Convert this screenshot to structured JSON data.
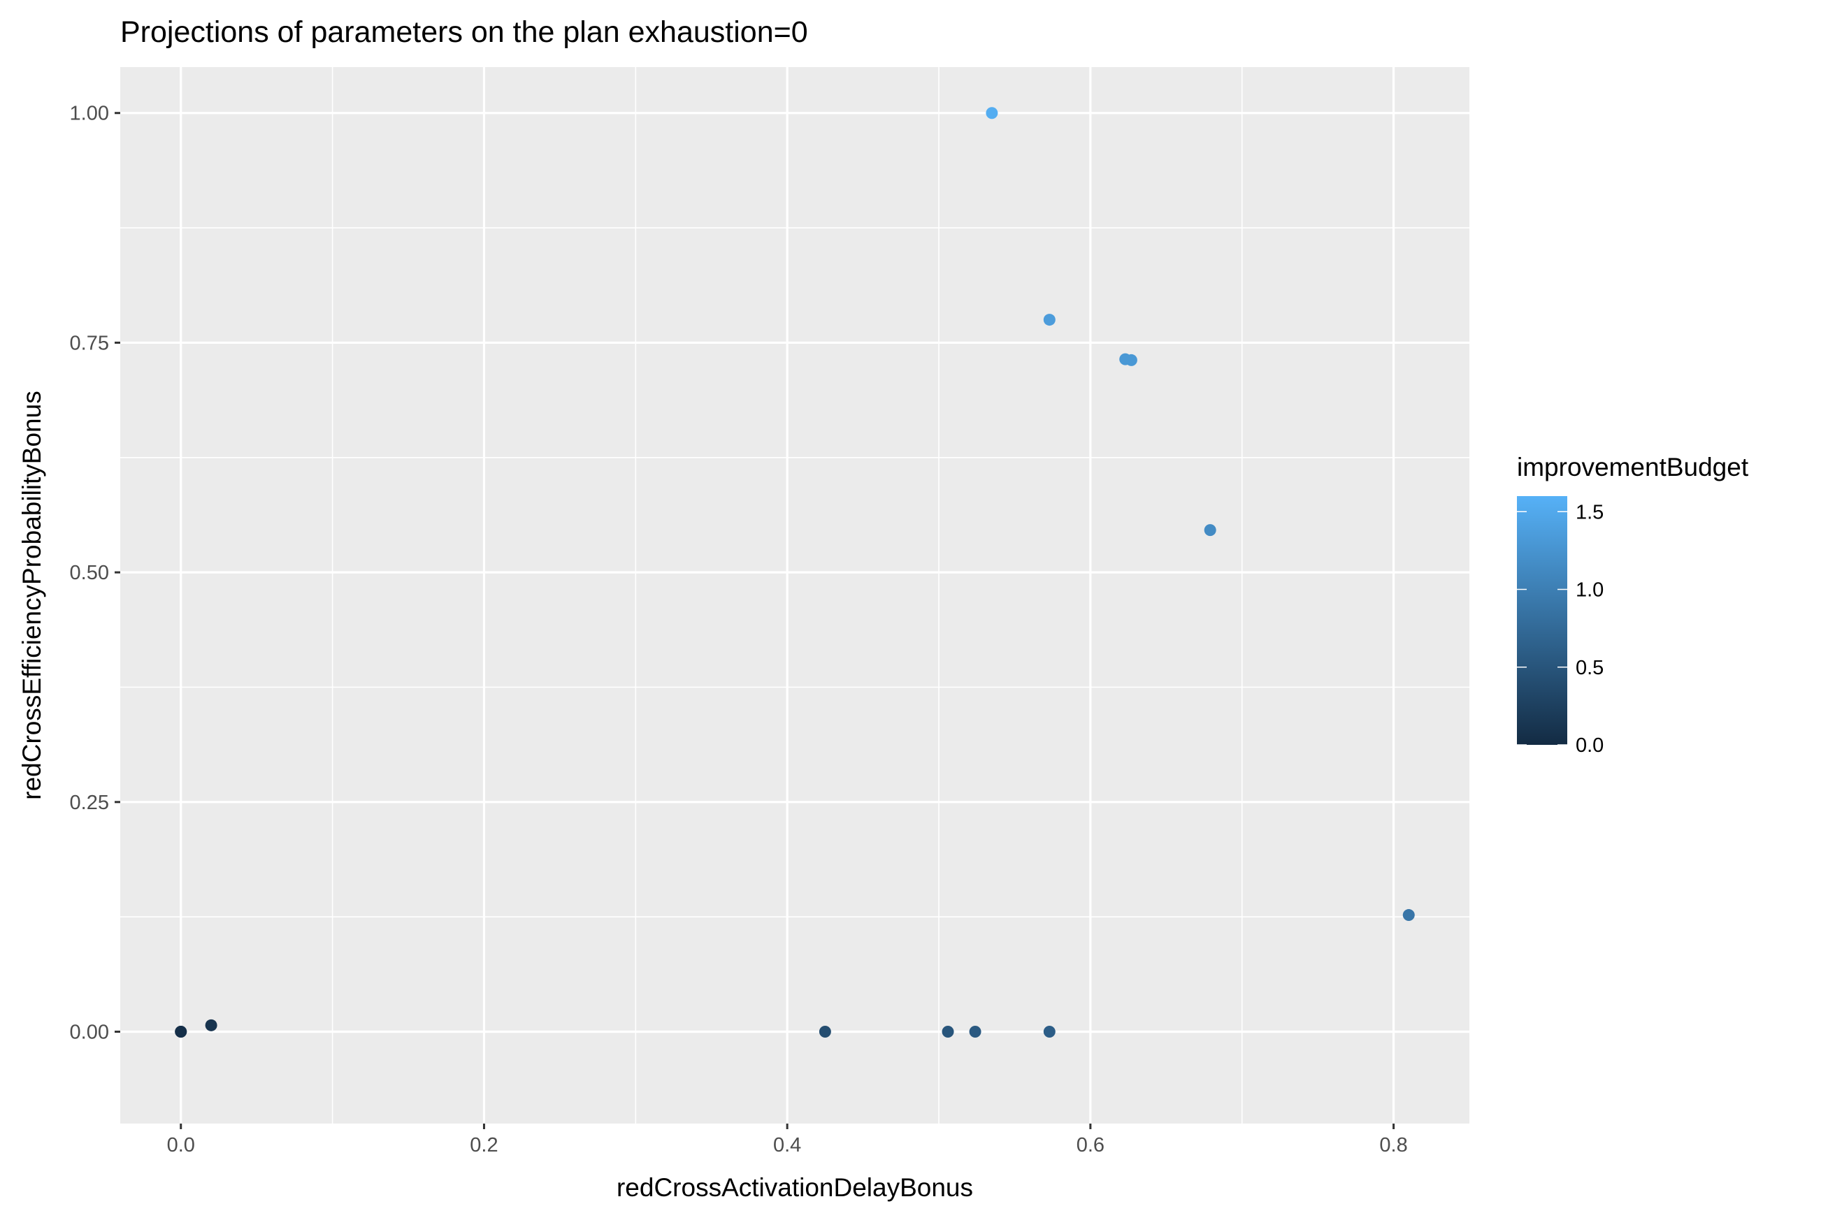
{
  "chart_data": {
    "type": "scatter",
    "title": "Projections of parameters on the plan exhaustion=0",
    "xlabel": "redCrossActivationDelayBonus",
    "ylabel": "redCrossEfficiencyProbabilityBonus",
    "xlim": [
      -0.04,
      0.85
    ],
    "ylim": [
      -0.1,
      1.05
    ],
    "x_ticks": [
      0.0,
      0.2,
      0.4,
      0.6,
      0.8
    ],
    "x_tick_labels": [
      "0.0",
      "0.2",
      "0.4",
      "0.6",
      "0.8"
    ],
    "y_ticks": [
      0.0,
      0.25,
      0.5,
      0.75,
      1.0
    ],
    "y_tick_labels": [
      "0.00",
      "0.25",
      "0.50",
      "0.75",
      "1.00"
    ],
    "grid": true,
    "color_variable": "improvementBudget",
    "color_scale": {
      "low": "#132B43",
      "high": "#56B1F7",
      "min": 0.0,
      "max": 1.6,
      "ticks": [
        0.0,
        0.5,
        1.0,
        1.5
      ],
      "tick_labels": [
        "0.0",
        "0.5",
        "1.0",
        "1.5"
      ]
    },
    "legend_position": "right",
    "points": [
      {
        "x": 0.0,
        "y": 0.0,
        "improvementBudget": 0.0
      },
      {
        "x": 0.0,
        "y": 0.0,
        "improvementBudget": 0.05
      },
      {
        "x": 0.02,
        "y": 0.007,
        "improvementBudget": 0.1
      },
      {
        "x": 0.425,
        "y": 0.0,
        "improvementBudget": 0.4
      },
      {
        "x": 0.506,
        "y": 0.0,
        "improvementBudget": 0.5
      },
      {
        "x": 0.524,
        "y": 0.0,
        "improvementBudget": 0.55
      },
      {
        "x": 0.573,
        "y": 0.0,
        "improvementBudget": 0.6
      },
      {
        "x": 0.535,
        "y": 1.0,
        "improvementBudget": 1.55
      },
      {
        "x": 0.573,
        "y": 0.775,
        "improvementBudget": 1.35
      },
      {
        "x": 0.623,
        "y": 0.732,
        "improvementBudget": 1.3
      },
      {
        "x": 0.627,
        "y": 0.731,
        "improvementBudget": 1.3
      },
      {
        "x": 0.679,
        "y": 0.546,
        "improvementBudget": 1.15
      },
      {
        "x": 0.81,
        "y": 0.127,
        "improvementBudget": 0.9
      }
    ]
  }
}
